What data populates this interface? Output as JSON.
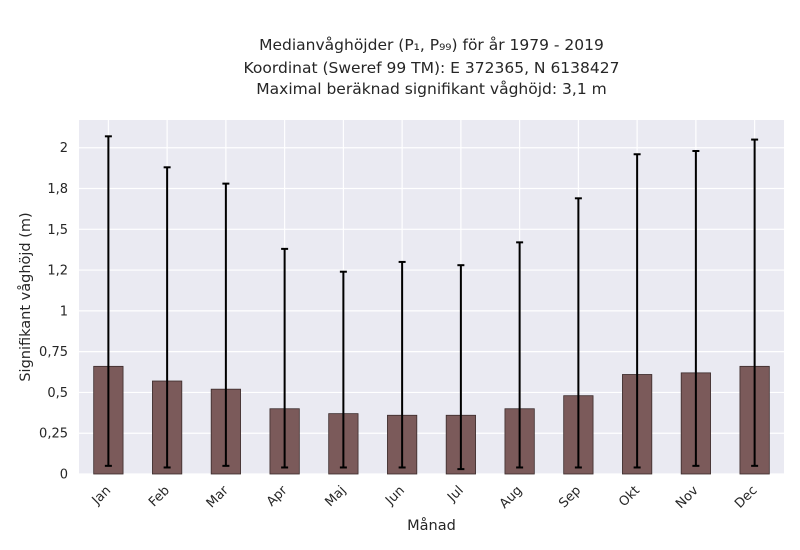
{
  "chart_data": {
    "type": "bar",
    "title_lines": [
      "Medianvåghöjder (P₁, P₉₉) för år 1979 - 2019",
      "Koordinat (Sweref 99 TM): E 372365, N 6138427",
      "Maximal beräknad signifikant våghöjd: 3,1 m"
    ],
    "xlabel": "Månad",
    "ylabel": "Signifikant våghöjd (m)",
    "categories": [
      "Jan",
      "Feb",
      "Mar",
      "Apr",
      "Maj",
      "Jun",
      "Jul",
      "Aug",
      "Sep",
      "Okt",
      "Nov",
      "Dec"
    ],
    "values": [
      0.66,
      0.57,
      0.52,
      0.4,
      0.37,
      0.36,
      0.36,
      0.4,
      0.48,
      0.61,
      0.62,
      0.66
    ],
    "error_low": [
      0.05,
      0.04,
      0.05,
      0.04,
      0.04,
      0.04,
      0.03,
      0.04,
      0.04,
      0.04,
      0.05,
      0.05
    ],
    "error_high": [
      2.07,
      1.88,
      1.78,
      1.38,
      1.24,
      1.3,
      1.28,
      1.42,
      1.69,
      1.96,
      1.98,
      2.05
    ],
    "yticks": [
      0,
      0.25,
      0.5,
      0.75,
      1,
      1.25,
      1.5,
      1.75,
      2
    ],
    "ytick_labels": [
      "0",
      "0,25",
      "0,5",
      "0,75",
      "1",
      "1,2",
      "1,5",
      "1,8",
      "2"
    ],
    "ylim": [
      0,
      2.17
    ],
    "grid": true,
    "colors": {
      "bar": "#7b5a5a",
      "bar_edge": "#3a2a2a",
      "error_bar": "#000000",
      "plot_bg": "#eaeaf2",
      "grid": "#ffffff",
      "text": "#262626"
    }
  }
}
